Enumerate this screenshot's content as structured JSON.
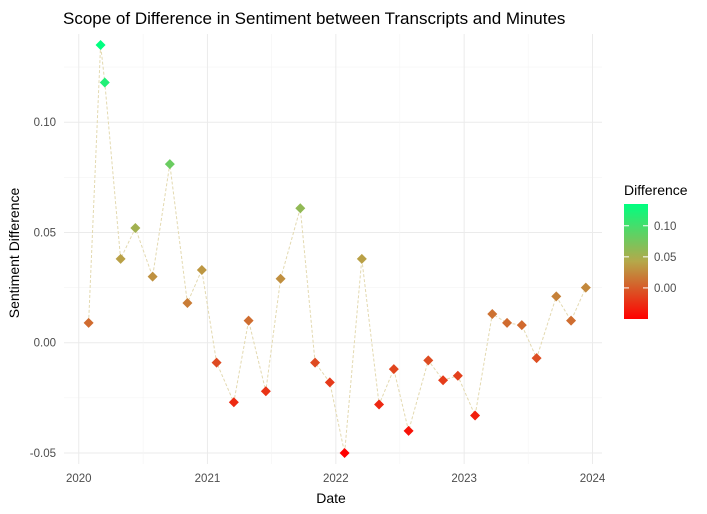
{
  "chart_data": {
    "type": "line",
    "title": "Scope of Difference in Sentiment between Transcripts and Minutes",
    "xlabel": "Date",
    "ylabel": "Sentiment Difference",
    "x_ticks": [
      "2020",
      "2021",
      "2022",
      "2023",
      "2024"
    ],
    "y_ticks": [
      "-0.05",
      "0.00",
      "0.05",
      "0.10"
    ],
    "xlim": [
      "2019-11-20",
      "2024-01-28"
    ],
    "ylim": [
      -0.055,
      0.14
    ],
    "grid": true,
    "legend_position": "right",
    "legend": {
      "title": "Difference",
      "ticks": [
        "0.10",
        "0.05",
        "0.00"
      ],
      "tick_values": [
        0.1,
        0.05,
        0.0
      ],
      "low_color": "#ff0000",
      "mid_color": "#b5a84a",
      "high_color": "#00ff80"
    },
    "line_color": "#e3d9b0",
    "series": [
      {
        "x": [
          "2020-01-29",
          "2020-03-03",
          "2020-03-15",
          "2020-04-29",
          "2020-06-10",
          "2020-07-29",
          "2020-09-16",
          "2020-11-05",
          "2020-12-16",
          "2021-01-27",
          "2021-03-17",
          "2021-04-28",
          "2021-06-16",
          "2021-07-28",
          "2021-09-22",
          "2021-11-03",
          "2021-12-15",
          "2022-01-26",
          "2022-03-16",
          "2022-05-04",
          "2022-06-15",
          "2022-07-27",
          "2022-09-21",
          "2022-11-02",
          "2022-12-14",
          "2023-02-01",
          "2023-03-22",
          "2023-05-03",
          "2023-06-14",
          "2023-07-26",
          "2023-09-20",
          "2023-11-01",
          "2023-12-13"
        ],
        "values": [
          0.009,
          0.135,
          0.118,
          0.038,
          0.052,
          0.03,
          0.081,
          0.018,
          0.033,
          -0.009,
          -0.027,
          0.01,
          -0.022,
          0.029,
          0.061,
          -0.009,
          -0.018,
          -0.05,
          0.038,
          -0.028,
          -0.012,
          -0.04,
          -0.008,
          -0.017,
          -0.015,
          -0.033,
          0.013,
          0.009,
          0.008,
          -0.007,
          0.021,
          0.01,
          0.025
        ]
      }
    ]
  }
}
